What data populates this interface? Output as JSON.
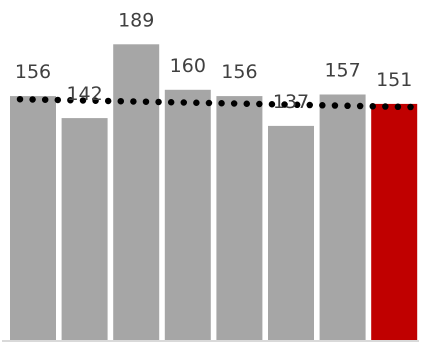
{
  "chart_data": {
    "type": "bar",
    "categories": [
      "",
      "",
      "",
      "",
      "",
      "",
      "",
      ""
    ],
    "values": [
      156,
      142,
      189,
      160,
      156,
      137,
      157,
      151
    ],
    "labels": [
      "156",
      "142",
      "189",
      "160",
      "156",
      "137",
      "157",
      "151"
    ],
    "highlight_index": 7,
    "colors": {
      "bar": "#a6a6a6",
      "highlight": "#c00000",
      "trend": "#000000",
      "axis": "#d9d9d9"
    },
    "trendline": {
      "style": "dotted",
      "start": 154,
      "end": 149
    },
    "ylim": [
      0,
      200
    ],
    "grid": false,
    "legend": false,
    "title": "",
    "xlabel": "",
    "ylabel": ""
  }
}
